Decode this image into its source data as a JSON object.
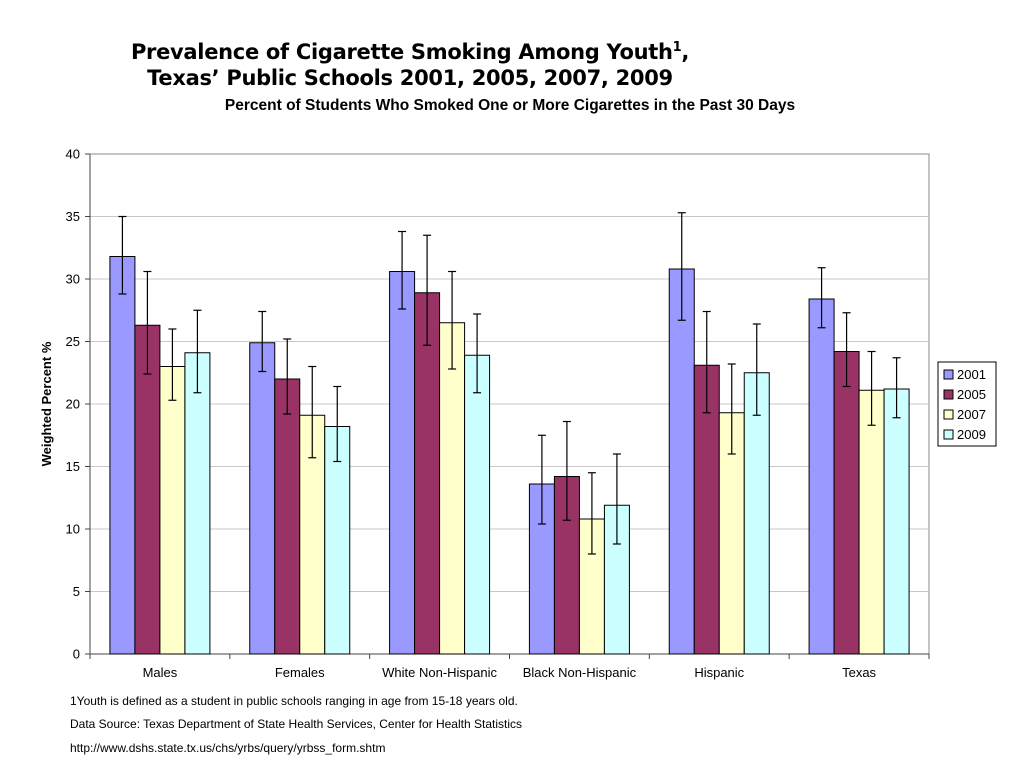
{
  "title": {
    "line1": "Prevalence of Cigarette Smoking Among Youth",
    "line1_sup": "1",
    "line1_tail": ",",
    "line2": "Texas’ Public Schools 2001, 2005, 2007, 2009"
  },
  "subtitle": "Percent of Students Who Smoked One or More Cigarettes in the Past 30 Days",
  "footnotes": {
    "note1": "1Youth is defined as a student in public schools ranging in age from 15-18 years old.",
    "note2": "Data Source: Texas Department of State Health Services, Center for Health Statistics",
    "note3": "http://www.dshs.state.tx.us/chs/yrbs/query/yrbss_form.shtm"
  },
  "chart_data": {
    "type": "bar",
    "ylabel": "Weighted Percent %",
    "xlabel": "",
    "ylim": [
      0,
      40
    ],
    "yticks": [
      0,
      5,
      10,
      15,
      20,
      25,
      30,
      35,
      40
    ],
    "grid": true,
    "legend_position": "right",
    "categories": [
      "Males",
      "Females",
      "White Non-Hispanic",
      "Black Non-Hispanic",
      "Hispanic",
      "Texas"
    ],
    "series": [
      {
        "name": "2001",
        "color": "#9999ff",
        "values": [
          31.8,
          24.9,
          30.6,
          13.6,
          30.8,
          28.4
        ],
        "error_low": [
          28.8,
          22.6,
          27.6,
          10.4,
          26.7,
          26.1
        ],
        "error_high": [
          35.0,
          27.4,
          33.8,
          17.5,
          35.3,
          30.9
        ]
      },
      {
        "name": "2005",
        "color": "#993366",
        "values": [
          26.3,
          22.0,
          28.9,
          14.2,
          23.1,
          24.2
        ],
        "error_low": [
          22.4,
          19.2,
          24.7,
          10.7,
          19.3,
          21.4
        ],
        "error_high": [
          30.6,
          25.2,
          33.5,
          18.6,
          27.4,
          27.3
        ]
      },
      {
        "name": "2007",
        "color": "#ffffcc",
        "values": [
          23.0,
          19.1,
          26.5,
          10.8,
          19.3,
          21.1
        ],
        "error_low": [
          20.3,
          15.7,
          22.8,
          8.0,
          16.0,
          18.3
        ],
        "error_high": [
          26.0,
          23.0,
          30.6,
          14.5,
          23.2,
          24.2
        ]
      },
      {
        "name": "2009",
        "color": "#ccffff",
        "values": [
          24.1,
          18.2,
          23.9,
          11.9,
          22.5,
          21.2
        ],
        "error_low": [
          20.9,
          15.4,
          20.9,
          8.8,
          19.1,
          18.9
        ],
        "error_high": [
          27.5,
          21.4,
          27.2,
          16.0,
          26.4,
          23.7
        ]
      }
    ]
  }
}
